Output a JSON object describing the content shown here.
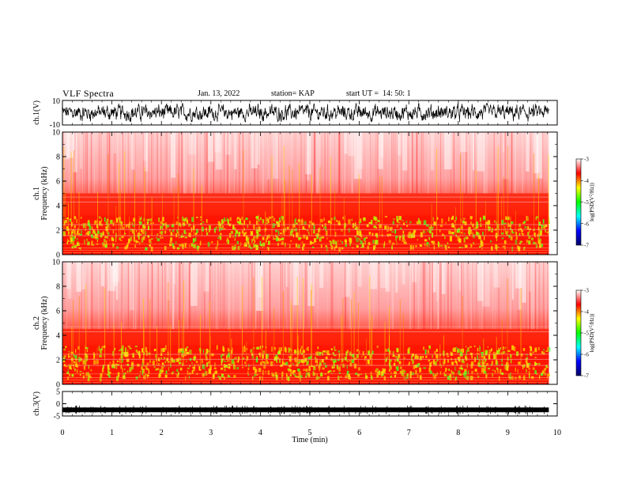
{
  "header": {
    "title": "VLF Spectra",
    "date": "Jan. 13, 2022",
    "station": "station= KAP",
    "start": "start UT =  14: 50: 1"
  },
  "chart_data": [
    {
      "type": "line",
      "panel": "ch1-waveform",
      "ylabel": "ch.1(V)",
      "ylim": [
        -10,
        10
      ],
      "yticks": [
        "10",
        "-10"
      ],
      "xlim": [
        0,
        10
      ],
      "color": "#000000",
      "description_values": {
        "approx_range": [
          -7,
          7
        ],
        "end_time_min": 9.83
      }
    },
    {
      "type": "heatmap",
      "panel": "ch1-spectrogram",
      "ylabel": "ch.1",
      "ylabel2": "Frequency (kHz)",
      "ylim": [
        0,
        10
      ],
      "yticks": [
        "0",
        "2",
        "4",
        "6",
        "8",
        "10"
      ],
      "xlim": [
        0,
        10
      ],
      "end_time_min": 9.83,
      "bands_kHz": {
        "strong": [
          0,
          3.2
        ],
        "medium": [
          3.2,
          5.0
        ],
        "weak": [
          5.0,
          10
        ]
      }
    },
    {
      "type": "heatmap",
      "panel": "ch2-spectrogram",
      "ylabel": "ch.2",
      "ylabel2": "Frequency (kHz)",
      "ylim": [
        0,
        10
      ],
      "yticks": [
        "0",
        "2",
        "4",
        "6",
        "8",
        "10"
      ],
      "xlim": [
        0,
        10
      ],
      "end_time_min": 9.83,
      "bands_kHz": {
        "strong": [
          0,
          3.2
        ],
        "medium": [
          3.2,
          4.5
        ],
        "weak": [
          4.5,
          10
        ]
      }
    },
    {
      "type": "line",
      "panel": "ch3-waveform",
      "ylabel": "ch.3(V)",
      "ylim": [
        -5,
        5
      ],
      "yticks": [
        "5",
        "0",
        "-5"
      ],
      "xlim": [
        0,
        10
      ],
      "xticks": [
        "0",
        "1",
        "2",
        "3",
        "4",
        "5",
        "6",
        "7",
        "8",
        "9",
        "10"
      ],
      "xlabel": "Time (min)",
      "color": "#000000",
      "description_values": {
        "approx_value": -2.5,
        "end_time_min": 9.83
      }
    }
  ],
  "colorbar": {
    "label": "log(PSD(V^2/Hz))",
    "label_parts": [
      "log(PSD(V",
      "2",
      "/Hz))"
    ],
    "ticks": [
      "-3",
      "-4",
      "-5",
      "-6",
      "-7"
    ],
    "range": [
      -7,
      -3
    ],
    "colors": [
      "#000066",
      "#0000ff",
      "#00ffff",
      "#00ff00",
      "#ffff00",
      "#ff0000",
      "#ffffff"
    ]
  }
}
